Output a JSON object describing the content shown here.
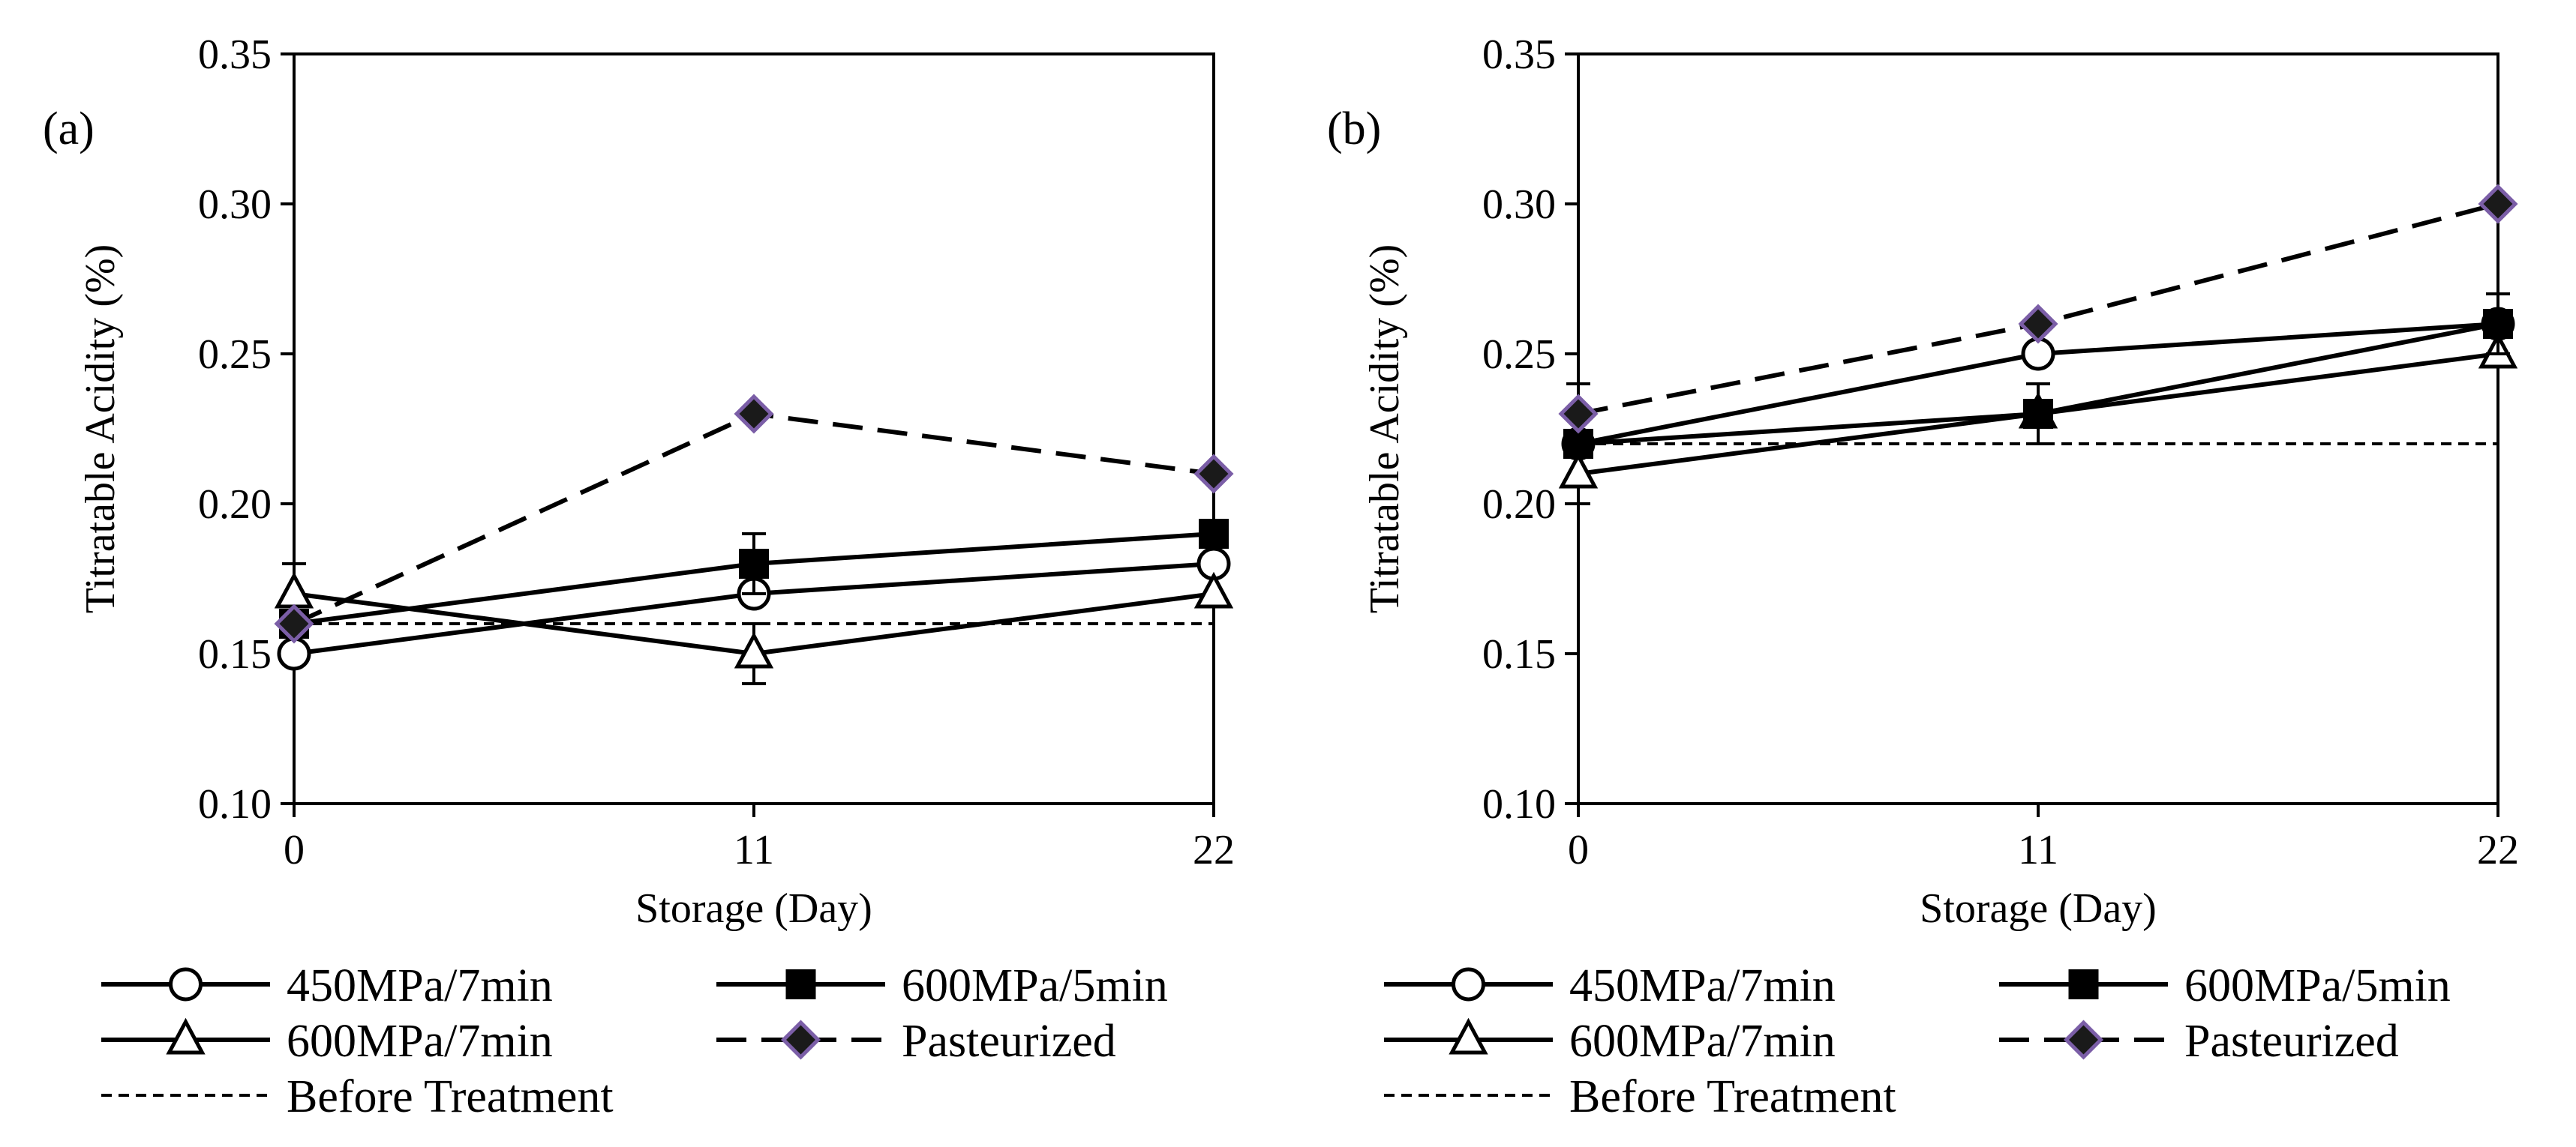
{
  "figure": {
    "legend_labels": {
      "s450_7": "450MPa/7min",
      "s600_5": "600MPa/5min",
      "s600_7": "600MPa/7min",
      "past": "Pasteurized",
      "before": "Before Treatment"
    }
  },
  "chart_data": [
    {
      "type": "line",
      "panel_label": "(a)",
      "xlabel": "Storage (Day)",
      "ylabel": "Titratable Acidity (%)",
      "x": [
        0,
        11,
        22
      ],
      "xticks": [
        "0",
        "11",
        "22"
      ],
      "xlim": [
        0,
        22
      ],
      "ylim": [
        0.1,
        0.35
      ],
      "yticks": [
        "0.10",
        "0.15",
        "0.20",
        "0.25",
        "0.30",
        "0.35"
      ],
      "grid": false,
      "legend_position": "bottom",
      "series": [
        {
          "key": "s450_7",
          "name": "450MPa/7min",
          "values": [
            0.15,
            0.17,
            0.18
          ],
          "errors": [
            0,
            0,
            0
          ],
          "marker": "circle-open",
          "line": "solid"
        },
        {
          "key": "s600_5",
          "name": "600MPa/5min",
          "values": [
            0.16,
            0.18,
            0.19
          ],
          "errors": [
            0,
            0.01,
            0
          ],
          "marker": "square-filled",
          "line": "solid"
        },
        {
          "key": "s600_7",
          "name": "600MPa/7min",
          "values": [
            0.17,
            0.15,
            0.17
          ],
          "errors": [
            0.01,
            0.01,
            0
          ],
          "marker": "triangle-open",
          "line": "solid"
        },
        {
          "key": "past",
          "name": "Pasteurized",
          "values": [
            0.16,
            0.23,
            0.21
          ],
          "errors": [
            0,
            0,
            0
          ],
          "marker": "diamond",
          "line": "long-dash"
        },
        {
          "key": "before",
          "name": "Before Treatment",
          "values": [
            0.16,
            0.16,
            0.16
          ],
          "errors": [
            0,
            0,
            0
          ],
          "marker": "none",
          "line": "short-dash"
        }
      ]
    },
    {
      "type": "line",
      "panel_label": "(b)",
      "xlabel": "Storage (Day)",
      "ylabel": "Titratable Acidity (%)",
      "x": [
        0,
        11,
        22
      ],
      "xticks": [
        "0",
        "11",
        "22"
      ],
      "xlim": [
        0,
        22
      ],
      "ylim": [
        0.1,
        0.35
      ],
      "yticks": [
        "0.10",
        "0.15",
        "0.20",
        "0.25",
        "0.30",
        "0.35"
      ],
      "grid": false,
      "legend_position": "bottom",
      "series": [
        {
          "key": "s450_7",
          "name": "450MPa/7min",
          "values": [
            0.22,
            0.25,
            0.26
          ],
          "errors": [
            0,
            0,
            0
          ],
          "marker": "circle-open",
          "line": "solid"
        },
        {
          "key": "s600_5",
          "name": "600MPa/5min",
          "values": [
            0.22,
            0.23,
            0.26
          ],
          "errors": [
            0,
            0.01,
            0.01
          ],
          "marker": "square-filled",
          "line": "solid"
        },
        {
          "key": "s600_7",
          "name": "600MPa/7min",
          "values": [
            0.21,
            0.23,
            0.25
          ],
          "errors": [
            0.01,
            0,
            0
          ],
          "marker": "triangle-open",
          "line": "solid"
        },
        {
          "key": "past",
          "name": "Pasteurized",
          "values": [
            0.23,
            0.26,
            0.3
          ],
          "errors": [
            0.01,
            0,
            0
          ],
          "marker": "diamond",
          "line": "long-dash"
        },
        {
          "key": "before",
          "name": "Before Treatment",
          "values": [
            0.22,
            0.22,
            0.22
          ],
          "errors": [
            0,
            0,
            0
          ],
          "marker": "none",
          "line": "short-dash"
        }
      ]
    }
  ],
  "colors": {
    "line": "#000000",
    "marker_fill_open": "#ffffff",
    "diamond_fill": "#1a1a1a",
    "diamond_edge": "#7b5ea7"
  }
}
